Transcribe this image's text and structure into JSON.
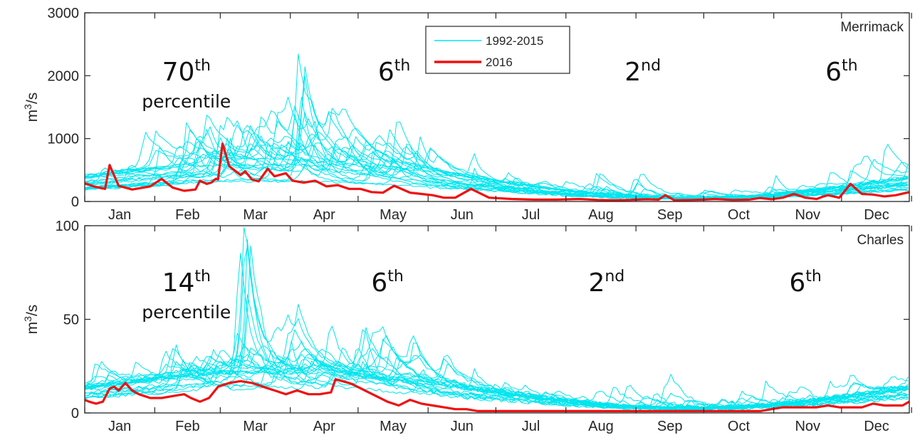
{
  "chart_data": [
    {
      "type": "line",
      "panel_label": "Merrimack",
      "ylabel_base": "m",
      "ylabel_sup": "3",
      "ylabel_rest": "/s",
      "ylim": [
        0,
        3000
      ],
      "yticks": [
        "0",
        "1000",
        "2000",
        "3000"
      ],
      "xticks": [
        "Jan",
        "Feb",
        "Mar",
        "Apr",
        "May",
        "Jun",
        "Jul",
        "Aug",
        "Sep",
        "Oct",
        "Nov",
        "Dec"
      ],
      "grid": false,
      "legend": {
        "placement": "top-center",
        "entries": [
          {
            "label": "1992-2015",
            "color": "#00e5ee"
          },
          {
            "label": "2016",
            "color": "#ee1111"
          }
        ]
      },
      "annotations": [
        {
          "num": "70",
          "sup": "th",
          "sub": "percentile",
          "day": 46
        },
        {
          "num": "6",
          "sup": "th",
          "sub": "",
          "day": 138
        },
        {
          "num": "2",
          "sup": "nd",
          "sub": "",
          "day": 248
        },
        {
          "num": "6",
          "sup": "th",
          "sub": "",
          "day": 336
        }
      ],
      "series": [
        {
          "name": "2016",
          "color": "#ee1111",
          "day": [
            1,
            5,
            10,
            12,
            16,
            22,
            30,
            35,
            40,
            45,
            50,
            52,
            55,
            57,
            59,
            60,
            62,
            65,
            70,
            72,
            75,
            78,
            82,
            85,
            90,
            93,
            98,
            103,
            108,
            113,
            118,
            123,
            128,
            133,
            138,
            145,
            150,
            155,
            160,
            165,
            172,
            180,
            190,
            200,
            210,
            220,
            228,
            235,
            242,
            250,
            255,
            258,
            262,
            270,
            275,
            280,
            288,
            295,
            300,
            305,
            310,
            315,
            320,
            325,
            328,
            330,
            335,
            340,
            345,
            350,
            355,
            360,
            366
          ],
          "flow": [
            290,
            240,
            200,
            580,
            250,
            190,
            240,
            360,
            220,
            170,
            190,
            330,
            280,
            300,
            360,
            350,
            920,
            560,
            420,
            480,
            350,
            320,
            520,
            400,
            450,
            330,
            300,
            330,
            240,
            260,
            200,
            200,
            150,
            140,
            250,
            140,
            120,
            100,
            60,
            60,
            200,
            60,
            40,
            30,
            30,
            40,
            25,
            20,
            25,
            35,
            30,
            100,
            20,
            25,
            30,
            40,
            25,
            30,
            55,
            35,
            60,
            120,
            60,
            40,
            80,
            100,
            60,
            280,
            120,
            110,
            80,
            100,
            150
          ]
        }
      ],
      "background_series_label": "1992-2015",
      "background_series_count": 24
    },
    {
      "type": "line",
      "panel_label": "Charles",
      "ylabel_base": "m",
      "ylabel_sup": "3",
      "ylabel_rest": "/s",
      "ylim": [
        0,
        100
      ],
      "yticks": [
        "0",
        "50",
        "100"
      ],
      "xticks": [
        "Jan",
        "Feb",
        "Mar",
        "Apr",
        "May",
        "Jun",
        "Jul",
        "Aug",
        "Sep",
        "Oct",
        "Nov",
        "Dec"
      ],
      "grid": false,
      "annotations": [
        {
          "num": "14",
          "sup": "th",
          "sub": "percentile",
          "day": 46
        },
        {
          "num": "6",
          "sup": "th",
          "sub": "",
          "day": 135
        },
        {
          "num": "2",
          "sup": "nd",
          "sub": "",
          "day": 232
        },
        {
          "num": "6",
          "sup": "th",
          "sub": "",
          "day": 320
        }
      ],
      "series": [
        {
          "name": "2016",
          "color": "#ee1111",
          "day": [
            1,
            3,
            6,
            9,
            12,
            14,
            16,
            19,
            22,
            25,
            30,
            35,
            40,
            45,
            48,
            52,
            56,
            60,
            65,
            70,
            75,
            80,
            85,
            90,
            95,
            100,
            105,
            110,
            112,
            115,
            118,
            120,
            125,
            130,
            135,
            140,
            145,
            150,
            155,
            160,
            165,
            170,
            175,
            180,
            190,
            200,
            210,
            220,
            230,
            240,
            250,
            260,
            270,
            280,
            285,
            290,
            295,
            300,
            305,
            310,
            315,
            320,
            325,
            330,
            335,
            340,
            345,
            350,
            355,
            360,
            363,
            366
          ],
          "flow": [
            7,
            6,
            5,
            6,
            13,
            14,
            12,
            16,
            12,
            10,
            8,
            8,
            9,
            10,
            8,
            6,
            8,
            14,
            16,
            17,
            16,
            14,
            12,
            10,
            12,
            10,
            10,
            11,
            18,
            17,
            16,
            15,
            12,
            9,
            6,
            4,
            7,
            5,
            4,
            3,
            2,
            2,
            1,
            1,
            1,
            1,
            1,
            1,
            1,
            1,
            1,
            1,
            1,
            1,
            1,
            1,
            1,
            1,
            2,
            3,
            3,
            3,
            3,
            4,
            3,
            3,
            3,
            5,
            4,
            4,
            4,
            6
          ]
        }
      ],
      "background_series_label": "1992-2015",
      "background_series_count": 24
    }
  ]
}
